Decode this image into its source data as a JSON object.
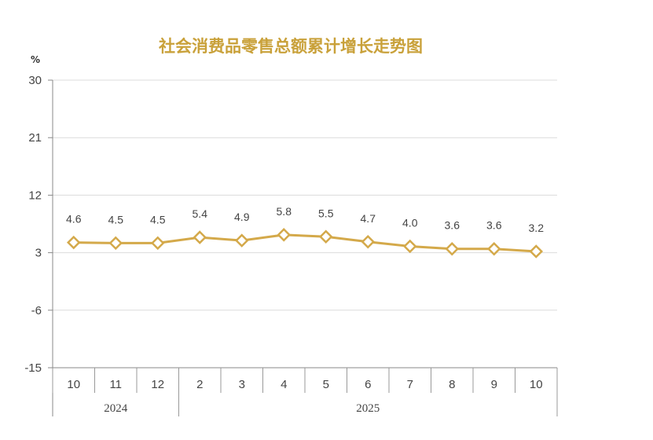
{
  "chart_data": {
    "type": "line",
    "title": "社会消费品零售总额累计增长走势图",
    "ylabel": "%",
    "ylim": [
      -15,
      30
    ],
    "yticks": [
      30,
      21,
      12,
      3,
      -6,
      -15
    ],
    "categories": [
      "10",
      "11",
      "12",
      "2",
      "3",
      "4",
      "5",
      "6",
      "7",
      "8",
      "9",
      "10"
    ],
    "year_groups": [
      {
        "label": "2024",
        "count": 3
      },
      {
        "label": "2025",
        "count": 9
      }
    ],
    "series": [
      {
        "values": [
          4.6,
          4.5,
          4.5,
          5.4,
          4.9,
          5.8,
          5.5,
          4.7,
          4.0,
          3.6,
          3.6,
          3.2
        ]
      }
    ],
    "data_labels": [
      "4.6",
      "4.5",
      "4.5",
      "5.4",
      "4.9",
      "5.8",
      "5.5",
      "4.7",
      "4.0",
      "3.6",
      "3.6",
      "3.2"
    ],
    "grid": true,
    "legend": "none",
    "line_color": "#d4a94a",
    "marker": "diamond-hollow"
  }
}
